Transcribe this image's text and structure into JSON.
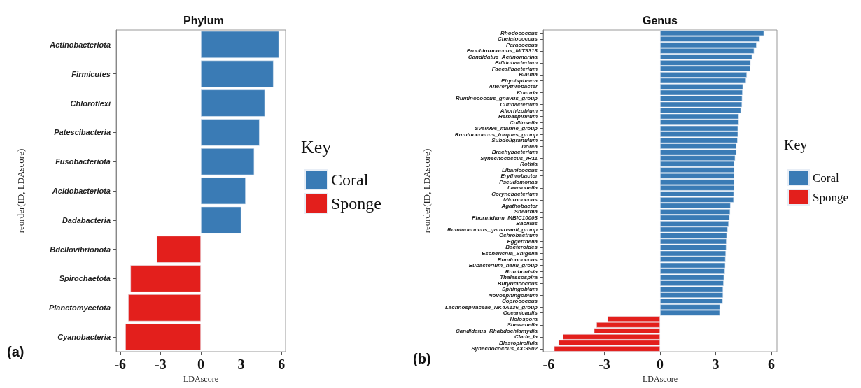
{
  "chart_data": [
    {
      "type": "bar",
      "orientation": "horizontal",
      "title": "Phylum",
      "xlabel": "LDAscore",
      "ylabel": "reorder(ID, LDAscore)",
      "legend_title": "Key",
      "legend": "right",
      "grid": false,
      "annotations": [
        "(a)"
      ],
      "categories": [
        "Actinobacteriota",
        "Firmicutes",
        "Chloroflexi",
        "Patescibacteria",
        "Fusobacteriota",
        "Acidobacteriota",
        "Dadabacteria",
        "Bdellovibrionota",
        "Spirochaetota",
        "Planctomycetota",
        "Cyanobacteria"
      ],
      "xlim": [
        -6.3,
        6.3
      ],
      "xticks": [
        -6,
        -3,
        0,
        3,
        6
      ],
      "series": [
        {
          "name": "Coral",
          "color": "#3a7bb5",
          "values": [
            5.81,
            5.4,
            4.76,
            4.36,
            3.97,
            3.33,
            3.0,
            null,
            null,
            null,
            null
          ]
        },
        {
          "name": "Sponge",
          "color": "#e31f1c",
          "values": [
            null,
            null,
            null,
            null,
            null,
            null,
            null,
            -3.29,
            -5.24,
            -5.41,
            -5.62
          ]
        }
      ]
    },
    {
      "type": "bar",
      "orientation": "horizontal",
      "title": "Genus",
      "xlabel": "LDAscore",
      "ylabel": "reorder(ID, LDAscore)",
      "legend_title": "Key",
      "legend": "right",
      "grid": false,
      "annotations": [
        "(b)"
      ],
      "categories": [
        "Rhodococcus",
        "Chelatococcus",
        "Paracoccus",
        "Prochlorococcus_MIT9313",
        "Candidatus_Actinomarina",
        "Bifidobacterium",
        "Faecalibacterium",
        "Blautia",
        "Phycisphaera",
        "Altererythrobacter",
        "Kocuria",
        "Ruminococcus_gnavus_group",
        "Cutibacterium",
        "Allorhizobium",
        "Herbaspirillum",
        "Collinsella",
        "Sva0996_marine_group",
        "Ruminococcus_torques_group",
        "Subdoligranulum",
        "Dorea",
        "Brachybacterium",
        "Synechococcus_IR11",
        "Rothia",
        "Libanicoccus",
        "Erythrobacter",
        "Pseudomonas",
        "Lawsonella",
        "Corynebacterium",
        "Micrococcus",
        "Agathobacter",
        "Sneathia",
        "Phormidium_MBIC10003",
        "Bacillus",
        "Ruminococcus_gauvreauii_group",
        "Ochrobactrum",
        "Eggerthella",
        "Bacteroides",
        "Escherichia_Shigella",
        "Ruminococcus",
        "Eubacterium_hallii_group",
        "Romboutsia",
        "Thalassospira",
        "Butyricicoccus",
        "Sphingobium",
        "Novosphingobium",
        "Coprococcus",
        "Lachnospiraceae_NK4A136_group",
        "Oceanicaulis",
        "Holospora",
        "Shewanella",
        "Candidatus_Rhabdochlamydia",
        "Clade_Ia",
        "Blastopirellula",
        "Synechococcus_CC9902"
      ],
      "xlim": [
        -6.3,
        6.3
      ],
      "xticks": [
        -6,
        -3,
        0,
        3,
        6
      ],
      "series": [
        {
          "name": "Coral",
          "color": "#3a7bb5",
          "values": [
            5.6,
            5.38,
            5.2,
            5.07,
            4.96,
            4.88,
            4.86,
            4.68,
            4.64,
            4.47,
            4.45,
            4.43,
            4.42,
            4.36,
            4.25,
            4.25,
            4.2,
            4.2,
            4.18,
            4.12,
            4.12,
            4.05,
            4.0,
            4.0,
            4.0,
            4.0,
            4.0,
            3.98,
            3.97,
            3.8,
            3.78,
            3.75,
            3.7,
            3.65,
            3.6,
            3.58,
            3.57,
            3.55,
            3.53,
            3.52,
            3.5,
            3.45,
            3.43,
            3.4,
            3.4,
            3.38,
            3.23,
            3.22,
            null,
            null,
            null,
            null,
            null,
            null
          ]
        },
        {
          "name": "Sponge",
          "color": "#e31f1c",
          "values": [
            null,
            null,
            null,
            null,
            null,
            null,
            null,
            null,
            null,
            null,
            null,
            null,
            null,
            null,
            null,
            null,
            null,
            null,
            null,
            null,
            null,
            null,
            null,
            null,
            null,
            null,
            null,
            null,
            null,
            null,
            null,
            null,
            null,
            null,
            null,
            null,
            null,
            null,
            null,
            null,
            null,
            null,
            null,
            null,
            null,
            null,
            null,
            null,
            -2.84,
            -3.43,
            -3.56,
            -5.24,
            -5.48,
            -5.71
          ]
        }
      ]
    }
  ]
}
